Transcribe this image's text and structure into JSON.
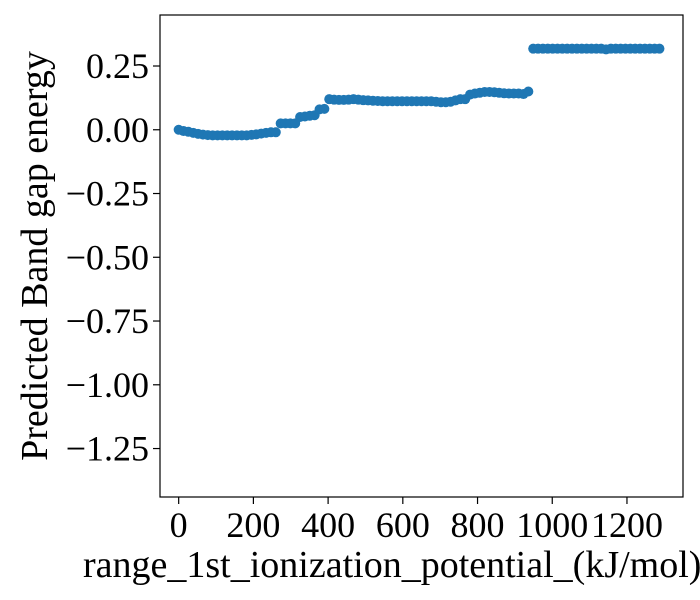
{
  "chart_data": {
    "type": "scatter",
    "xlabel": "range_1st_ionization_potential_(kJ/mol)",
    "ylabel": "Predicted Band gap energy",
    "xlim": [
      -50,
      1350
    ],
    "ylim": [
      -1.44,
      0.45
    ],
    "x_ticks": [
      0,
      200,
      400,
      600,
      800,
      1000,
      1200
    ],
    "x_tick_labels": [
      "0",
      "200",
      "400",
      "600",
      "800",
      "1000",
      "1200"
    ],
    "y_ticks": [
      0.25,
      0.0,
      -0.25,
      -0.5,
      -0.75,
      -1.0,
      -1.25
    ],
    "y_tick_labels": [
      "0.25",
      "0.00",
      "−0.25",
      "−0.50",
      "−0.75",
      "−1.00",
      "−1.25"
    ],
    "grid": false,
    "series": [
      {
        "color": "#1f77b4",
        "x": [
          0,
          13,
          26,
          39,
          52,
          65,
          78,
          91,
          104,
          117,
          130,
          143,
          156,
          169,
          182,
          195,
          208,
          221,
          234,
          247,
          260,
          273,
          286,
          299,
          312,
          325,
          338,
          351,
          364,
          377,
          390,
          403,
          416,
          429,
          442,
          455,
          468,
          481,
          494,
          507,
          520,
          533,
          546,
          559,
          572,
          585,
          598,
          611,
          624,
          637,
          650,
          663,
          676,
          689,
          702,
          715,
          728,
          741,
          754,
          767,
          780,
          793,
          806,
          819,
          832,
          845,
          858,
          871,
          884,
          897,
          910,
          923,
          936,
          949,
          962,
          975,
          988,
          1001,
          1014,
          1027,
          1040,
          1053,
          1066,
          1079,
          1092,
          1105,
          1118,
          1131,
          1144,
          1157,
          1170,
          1183,
          1196,
          1209,
          1222,
          1235,
          1248,
          1261,
          1274,
          1287
        ],
        "y": [
          0.0,
          -0.005,
          -0.008,
          -0.012,
          -0.016,
          -0.019,
          -0.021,
          -0.022,
          -0.022,
          -0.022,
          -0.022,
          -0.022,
          -0.022,
          -0.022,
          -0.022,
          -0.02,
          -0.018,
          -0.015,
          -0.012,
          -0.01,
          -0.01,
          0.025,
          0.025,
          0.025,
          0.025,
          0.05,
          0.052,
          0.055,
          0.057,
          0.08,
          0.082,
          0.12,
          0.118,
          0.117,
          0.117,
          0.118,
          0.12,
          0.118,
          0.116,
          0.115,
          0.114,
          0.113,
          0.112,
          0.112,
          0.112,
          0.112,
          0.112,
          0.112,
          0.112,
          0.112,
          0.112,
          0.112,
          0.112,
          0.11,
          0.108,
          0.108,
          0.11,
          0.115,
          0.12,
          0.12,
          0.138,
          0.142,
          0.145,
          0.148,
          0.148,
          0.147,
          0.145,
          0.143,
          0.142,
          0.142,
          0.142,
          0.14,
          0.15,
          0.318,
          0.318,
          0.318,
          0.318,
          0.318,
          0.318,
          0.318,
          0.318,
          0.318,
          0.318,
          0.318,
          0.318,
          0.318,
          0.318,
          0.318,
          0.315,
          0.318,
          0.318,
          0.318,
          0.318,
          0.318,
          0.318,
          0.318,
          0.318,
          0.318,
          0.318,
          0.318
        ]
      }
    ]
  }
}
